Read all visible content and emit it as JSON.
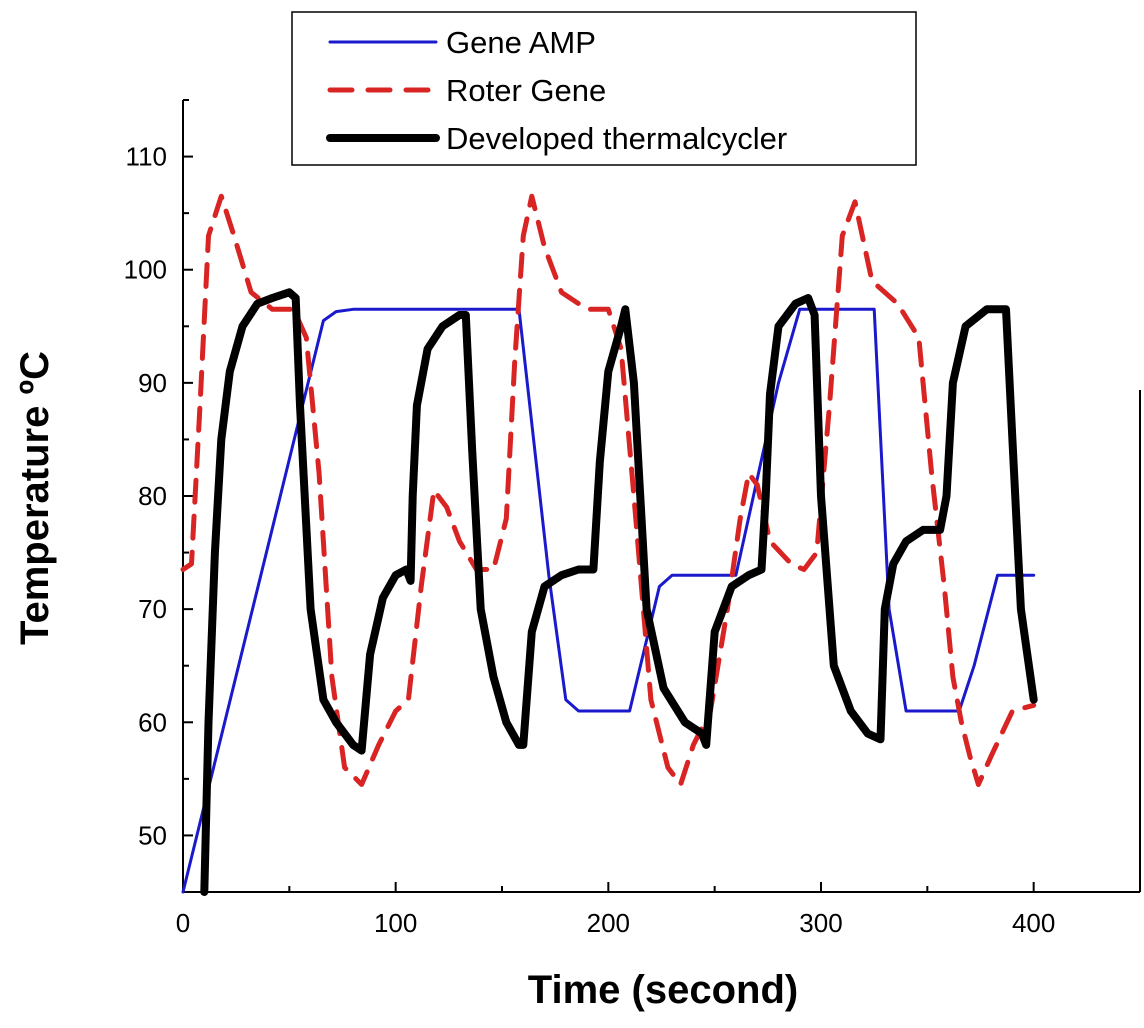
{
  "chart_data": {
    "type": "line",
    "title": "",
    "xlabel": "Time (second)",
    "ylabel": "Temperature ºC",
    "xlim": [
      0,
      450
    ],
    "ylim": [
      45,
      115
    ],
    "x_ticks": [
      "0",
      "100",
      "200",
      "300",
      "400"
    ],
    "y_ticks": [
      "50",
      "60",
      "70",
      "80",
      "90",
      "100",
      "110"
    ],
    "x_tick_values": [
      0,
      100,
      200,
      300,
      400
    ],
    "y_tick_values": [
      50,
      60,
      70,
      80,
      90,
      100,
      110
    ],
    "grid": false,
    "legend_position": "top-center",
    "series": [
      {
        "name": "Gene AMP",
        "color": "#1a1acc",
        "style": "solid",
        "x": [
          0,
          66,
          72,
          80,
          158,
          172,
          180,
          186,
          210,
          224,
          230,
          260,
          280,
          290,
          325,
          332,
          340,
          365,
          372,
          383,
          400
        ],
        "y": [
          45,
          95.5,
          96.3,
          96.5,
          96.5,
          73,
          62,
          61,
          61,
          72,
          73,
          73,
          90,
          96.5,
          96.5,
          70,
          61,
          61,
          65,
          73,
          73
        ]
      },
      {
        "name": "Roter Gene",
        "color": "#d92424",
        "style": "dashed",
        "x": [
          0,
          4,
          8,
          12,
          18,
          24,
          32,
          42,
          52,
          58,
          64,
          70,
          76,
          84,
          92,
          100,
          106,
          112,
          118,
          124,
          130,
          138,
          146,
          152,
          156,
          160,
          164,
          170,
          178,
          190,
          200,
          206,
          212,
          220,
          228,
          234,
          240,
          248,
          256,
          262,
          266,
          270,
          276,
          286,
          292,
          298,
          304,
          310,
          316,
          324,
          336,
          346,
          352,
          358,
          362,
          366,
          370,
          374,
          380,
          390,
          400
        ],
        "y": [
          73.5,
          74,
          88,
          103,
          106.5,
          103,
          98,
          96.5,
          96.5,
          94,
          82,
          64,
          56,
          54.5,
          58,
          61,
          62,
          72,
          80.5,
          79,
          76,
          73.5,
          73.5,
          78,
          92,
          103,
          106.5,
          102,
          98,
          96.5,
          96.5,
          93,
          80,
          62,
          56,
          54.5,
          58,
          61,
          70,
          78,
          82,
          81,
          76,
          74,
          73.5,
          75,
          88,
          103,
          106,
          99,
          97,
          94,
          82,
          72,
          64,
          60,
          57,
          54.5,
          57,
          61,
          61.5
        ]
      },
      {
        "name": "Developed thermalcycler",
        "color": "#000000",
        "style": "solid",
        "x": [
          10,
          12,
          15,
          18,
          22,
          28,
          35,
          42,
          50,
          53,
          55,
          60,
          66,
          72,
          80,
          84,
          88,
          94,
          100,
          105,
          107,
          108,
          110,
          115,
          122,
          130,
          133,
          136,
          140,
          146,
          152,
          158,
          160,
          164,
          170,
          178,
          186,
          193,
          196,
          200,
          206,
          208,
          212,
          218,
          226,
          236,
          244,
          246,
          250,
          258,
          266,
          272,
          274,
          276,
          280,
          288,
          294,
          297,
          300,
          306,
          314,
          322,
          328,
          330,
          334,
          340,
          348,
          356,
          359,
          362,
          368,
          378,
          387,
          390,
          394,
          400
        ],
        "y": [
          45,
          60,
          75,
          85,
          91,
          95,
          97,
          97.5,
          98,
          97.5,
          88,
          70,
          62,
          60,
          58,
          57.5,
          66,
          71,
          73,
          73.5,
          72.5,
          80,
          88,
          93,
          95,
          96,
          96,
          84,
          70,
          64,
          60,
          58,
          58,
          68,
          72,
          73,
          73.5,
          73.5,
          83,
          91,
          95,
          96.5,
          90,
          70,
          63,
          60,
          59,
          58,
          68,
          72,
          73,
          73.5,
          80,
          89,
          95,
          97,
          97.5,
          96,
          80,
          65,
          61,
          59,
          58.5,
          70,
          74,
          76,
          77,
          77,
          80,
          90,
          95,
          96.5,
          96.5,
          85,
          70,
          62
        ]
      }
    ]
  }
}
